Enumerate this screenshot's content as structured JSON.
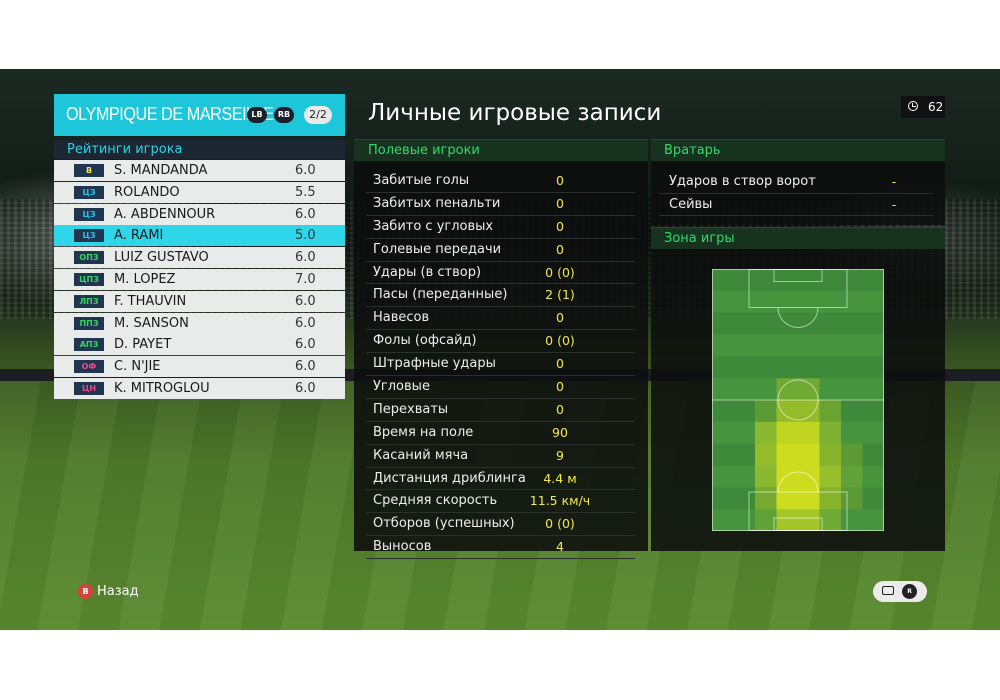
{
  "team": {
    "name": "OLYMPIQUE DE MARSEILLE",
    "lb_label": "LB",
    "rb_label": "RB",
    "page": "2/2"
  },
  "ratings_title": "Рейтинги игрока",
  "players": [
    {
      "pos": "В",
      "pos_color": "#f2e84c",
      "name": "S. MANDANDA",
      "rating": "6.0",
      "selected": false
    },
    {
      "pos": "ЦЗ",
      "pos_color": "#27c4e6",
      "name": "ROLANDO",
      "rating": "5.5",
      "selected": false
    },
    {
      "pos": "ЦЗ",
      "pos_color": "#27c4e6",
      "name": "A. ABDENNOUR",
      "rating": "6.0",
      "selected": false
    },
    {
      "pos": "ЦЗ",
      "pos_color": "#27c4e6",
      "name": "A. RAMI",
      "rating": "5.0",
      "selected": true
    },
    {
      "pos": "ОПЗ",
      "pos_color": "#39d65a",
      "name": "LUIZ GUSTAVO",
      "rating": "6.0",
      "selected": false
    },
    {
      "pos": "ЦПЗ",
      "pos_color": "#39d65a",
      "name": "M. LOPEZ",
      "rating": "7.0",
      "selected": false
    },
    {
      "pos": "ЛПЗ",
      "pos_color": "#39d65a",
      "name": "F. THAUVIN",
      "rating": "6.0",
      "selected": false
    },
    {
      "pos": "ППЗ",
      "pos_color": "#39d65a",
      "name": "M. SANSON",
      "rating": "6.0",
      "selected": false
    },
    {
      "pos": "АПЗ",
      "pos_color": "#39d65a",
      "name": "D. PAYET",
      "rating": "6.0",
      "selected": false
    },
    {
      "pos": "ОФ",
      "pos_color": "#e84c8a",
      "name": "C. N'JIE",
      "rating": "6.0",
      "selected": false
    },
    {
      "pos": "ЦН",
      "pos_color": "#e84c8a",
      "name": "K. MITROGLOU",
      "rating": "6.0",
      "selected": false
    }
  ],
  "main_title": "Личные игровые записи",
  "timer": "62",
  "field_players": {
    "title": "Полевые игроки",
    "stats": [
      {
        "label": "Забитые голы",
        "value": "0"
      },
      {
        "label": "Забитых пенальти",
        "value": "0"
      },
      {
        "label": "Забито с угловых",
        "value": "0"
      },
      {
        "label": "Голевые передачи",
        "value": "0"
      },
      {
        "label": "Удары (в створ)",
        "value": "0 (0)"
      },
      {
        "label": "Пасы (переданные)",
        "value": "2 (1)"
      },
      {
        "label": "Навесов",
        "value": "0"
      },
      {
        "label": "Фолы (офсайд)",
        "value": "0 (0)"
      },
      {
        "label": "Штрафные удары",
        "value": "0"
      },
      {
        "label": "Угловые",
        "value": "0"
      },
      {
        "label": "Перехваты",
        "value": "0"
      },
      {
        "label": "Время на поле",
        "value": "90"
      },
      {
        "label": "Касаний мяча",
        "value": "9"
      },
      {
        "label": "Дистанция дриблинга",
        "value": "4.4 м"
      },
      {
        "label": "Средняя скорость",
        "value": "11.5 км/ч"
      },
      {
        "label": "Отборов (успешных)",
        "value": "0 (0)"
      },
      {
        "label": "Выносов",
        "value": "4"
      }
    ]
  },
  "goalkeeper": {
    "title": "Вратарь",
    "stats": [
      {
        "label": "Ударов в створ ворот",
        "value": "-"
      },
      {
        "label": "Сейвы",
        "value": "-"
      }
    ]
  },
  "play_zone": {
    "title": "Зона игры",
    "grid_cols": 8,
    "grid_rows": 12,
    "heat": [
      [
        0,
        0,
        0,
        0,
        0,
        0,
        0,
        0
      ],
      [
        0,
        0,
        0,
        0,
        0,
        0,
        0,
        0
      ],
      [
        0,
        0,
        0,
        0,
        0,
        0,
        0,
        0
      ],
      [
        0,
        0,
        0,
        0,
        0,
        0,
        0,
        0
      ],
      [
        0,
        0,
        0,
        0,
        0,
        0,
        0,
        0
      ],
      [
        0,
        0,
        0,
        0.3,
        0.3,
        0,
        0,
        0
      ],
      [
        0,
        0,
        0.2,
        0.6,
        0.6,
        0.3,
        0,
        0
      ],
      [
        0,
        0,
        0.5,
        0.9,
        0.9,
        0.4,
        0,
        0
      ],
      [
        0,
        0,
        0.6,
        1,
        1,
        0.5,
        0.2,
        0
      ],
      [
        0,
        0,
        0.5,
        1,
        1,
        0.6,
        0.2,
        0
      ],
      [
        0,
        0,
        0.4,
        1,
        1,
        0.5,
        0.2,
        0
      ],
      [
        0,
        0,
        0.2,
        0.7,
        0.7,
        0.3,
        0,
        0
      ]
    ]
  },
  "footer": {
    "back_label": "Назад",
    "back_key": "B",
    "rs_key": "R"
  }
}
